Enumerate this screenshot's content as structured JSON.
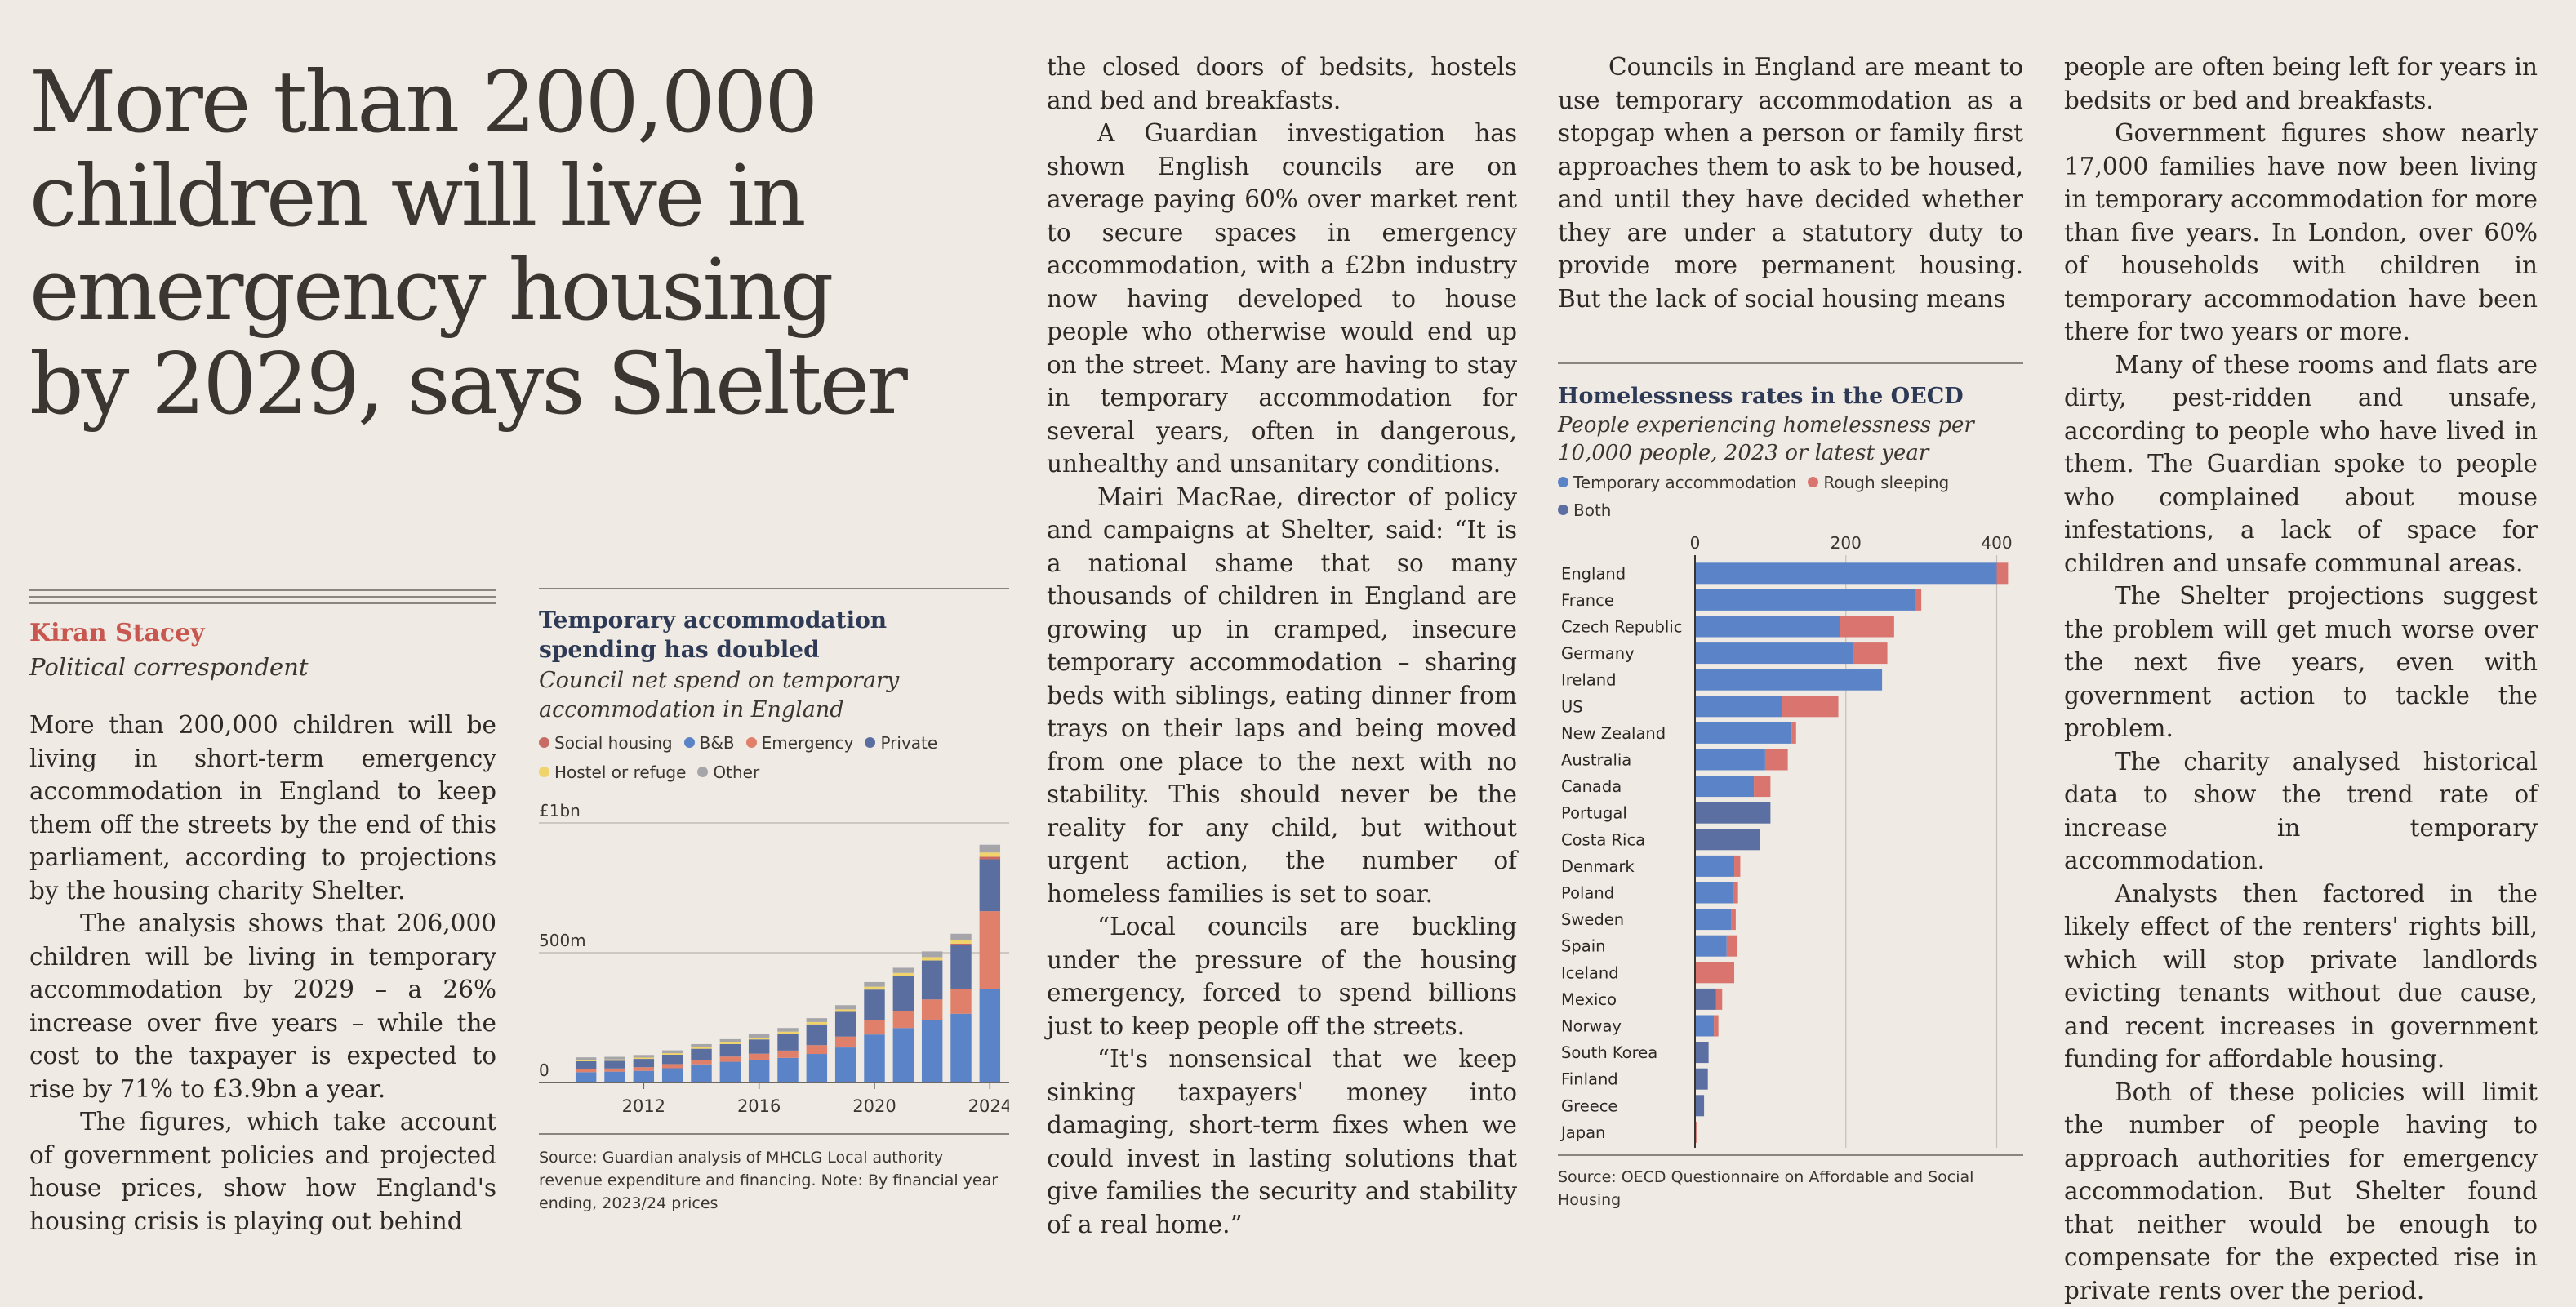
{
  "headline": [
    "More than 200,000",
    "children will live in",
    "emergency housing",
    "by 2029, says Shelter"
  ],
  "byline": {
    "name": "Kiran Stacey",
    "role": "Political correspondent"
  },
  "col1": [
    "More than 200,000 children will be living in short-term emergency accommodation in England to keep them off the streets by the end of this parliament, according to projections by the housing charity Shelter.",
    "The analysis shows that 206,000 children will be living in temporary accommodation by 2029 – a 26% increase over five years – while the cost to the taxpayer is expected to rise by 71% to £3.9bn a year.",
    "The figures, which take account of government policies and projected house prices, show how England's housing crisis is playing out behind"
  ],
  "col2": [
    "the closed doors of bedsits, hostels and bed and breakfasts.",
    "A Guardian investigation has shown English councils are on average paying 60% over market rent to secure spaces in emergency accommodation, with a £2bn industry now having developed to house people who otherwise would end up on the street. Many are having to stay in temporary accommodation for several years, often in dangerous, unhealthy and unsanitary conditions.",
    "Mairi MacRae, director of policy and campaigns at Shelter, said: “It is a national shame that so many thousands of children in England are growing up in cramped, insecure temporary accommodation – sharing beds with siblings, eating dinner from trays on their laps and being moved from one place to the next with no stability. This should never be the reality for any child, but without urgent action, the number of homeless families is set to soar.",
    "“Local councils are buckling under the pressure of the housing emergency, forced to spend billions just to keep people off the streets.",
    "“It's nonsensical that we keep sinking taxpayers' money into damaging, short-term fixes when we could invest in lasting solutions that give families the security and stability of a real home.”"
  ],
  "col3": [
    "Councils in England are meant to use temporary accommodation as a stopgap when a person or family first approaches them to ask to be housed, and until they have decided whether they are under a statutory duty to provide more permanent housing. But the lack of social housing means"
  ],
  "col4": [
    "people are often being left for years in bedsits or bed and breakfasts.",
    "Government figures show nearly 17,000 families have now been living in temporary accommodation for more than five years. In London, over 60% of households with children in temporary accommodation have been there for two years or more.",
    "Many of these rooms and flats are dirty, pest-ridden and unsafe, according to people who have lived in them. The Guardian spoke to people who complained about mouse infestations, a lack of space for children and unsafe communal areas.",
    "The Shelter projections suggest the problem will get much worse over the next five years, even with government action to tackle the problem.",
    "The charity analysed historical data to show the trend rate of increase in temporary accommodation.",
    "Analysts then factored in the likely effect of the renters' rights bill, which will stop private landlords evicting tenants without due cause, and recent increases in government funding for affordable housing.",
    "Both of these policies will limit the number of people having to approach authorities for emergency accommodation. But Shelter found that neither would be enough to compensate for the expected rise in private rents over the period."
  ],
  "colors": {
    "social": "#c86b63",
    "bb": "#5b84c8",
    "emergency": "#e0806a",
    "private": "#5a6fa0",
    "hostel": "#f0d36a",
    "other": "#a6a6aa",
    "temporary": "#5b84c8",
    "rough": "#d9756e",
    "both": "#5b6fa3"
  },
  "chart_data": [
    {
      "type": "bar",
      "stacked": true,
      "title": "Temporary accommodation spending has doubled",
      "subtitle": "Council net spend on temporary accommodation in England",
      "legend": [
        "Social housing",
        "B&B",
        "Emergency",
        "Private",
        "Hostel or refuge",
        "Other"
      ],
      "y_tick_labels": [
        "£1bn",
        "500m",
        "0"
      ],
      "x_tick_labels": [
        "2012",
        "2016",
        "2020",
        "2024"
      ],
      "ylim": [
        0,
        1000
      ],
      "categories": [
        "2010",
        "2011",
        "2012",
        "2013",
        "2014",
        "2015",
        "2016",
        "2017",
        "2018",
        "2019",
        "2020",
        "2021",
        "2022",
        "2023",
        "2024"
      ],
      "series": [
        {
          "name": "Social housing",
          "values": [
            0,
            0,
            0,
            0,
            0,
            0,
            0,
            0,
            0,
            0,
            0,
            0,
            0,
            5,
            10
          ]
        },
        {
          "name": "B&B",
          "values": [
            40,
            42,
            45,
            55,
            70,
            80,
            88,
            95,
            110,
            135,
            185,
            210,
            240,
            265,
            360
          ]
        },
        {
          "name": "Emergency",
          "values": [
            12,
            12,
            14,
            16,
            18,
            20,
            23,
            28,
            34,
            42,
            55,
            65,
            80,
            95,
            300
          ]
        },
        {
          "name": "Private",
          "values": [
            30,
            30,
            32,
            36,
            42,
            48,
            55,
            65,
            80,
            95,
            118,
            135,
            150,
            170,
            200
          ]
        },
        {
          "name": "Hostel or refuge",
          "values": [
            5,
            5,
            5,
            6,
            6,
            7,
            7,
            8,
            9,
            10,
            11,
            12,
            13,
            14,
            16
          ]
        },
        {
          "name": "Other",
          "values": [
            10,
            10,
            10,
            11,
            12,
            12,
            13,
            14,
            15,
            16,
            18,
            20,
            22,
            24,
            30
          ]
        }
      ],
      "source": "Source: Guardian analysis of MHCLG Local authority revenue expenditure and financing. Note: By financial year ending, 2023/24 prices"
    },
    {
      "type": "bar",
      "orientation": "horizontal",
      "stacked": true,
      "title": "Homelessness rates in the OECD",
      "subtitle": "People experiencing homelessness per 10,000 people, 2023 or latest year",
      "legend": [
        "Temporary accommodation",
        "Rough sleeping",
        "Both"
      ],
      "x_tick_labels": [
        "0",
        "200",
        "400"
      ],
      "xlim": [
        0,
        420
      ],
      "categories": [
        "England",
        "France",
        "Czech Republic",
        "Germany",
        "Ireland",
        "US",
        "New Zealand",
        "Australia",
        "Canada",
        "Portugal",
        "Costa Rica",
        "Denmark",
        "Poland",
        "Sweden",
        "Spain",
        "Iceland",
        "Mexico",
        "Norway",
        "South Korea",
        "Finland",
        "Greece",
        "Japan"
      ],
      "series": [
        {
          "name": "Temporary accommodation",
          "values": [
            400,
            292,
            192,
            210,
            248,
            115,
            128,
            93,
            78,
            0,
            0,
            52,
            50,
            48,
            42,
            0,
            0,
            25,
            0,
            0,
            0,
            0
          ]
        },
        {
          "name": "Rough sleeping",
          "values": [
            15,
            8,
            72,
            45,
            0,
            75,
            6,
            30,
            22,
            0,
            0,
            8,
            7,
            6,
            14,
            52,
            8,
            6,
            0,
            0,
            0,
            2
          ]
        },
        {
          "name": "Both",
          "values": [
            0,
            0,
            0,
            0,
            0,
            0,
            0,
            0,
            0,
            100,
            86,
            0,
            0,
            0,
            0,
            0,
            28,
            0,
            18,
            17,
            12,
            0
          ]
        }
      ],
      "source": "Source: OECD Questionnaire on Affordable and Social Housing"
    }
  ]
}
